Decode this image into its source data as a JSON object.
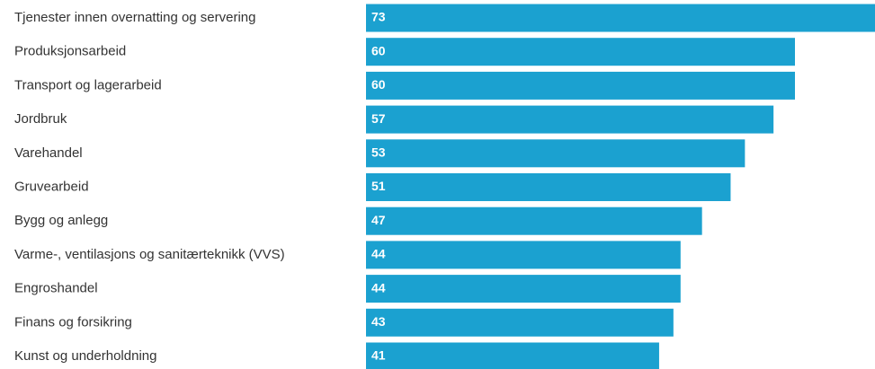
{
  "chart_data": {
    "type": "bar",
    "orientation": "horizontal",
    "categories": [
      "Tjenester innen overnatting og servering",
      "Produksjonsarbeid",
      "Transport og lagerarbeid",
      "Jordbruk",
      "Varehandel",
      "Gruvearbeid",
      "Bygg og anlegg",
      "Varme-, ventilasjons og sanitærteknikk (VVS)",
      "Engroshandel",
      "Finans og forsikring",
      "Kunst og underholdning"
    ],
    "values": [
      73,
      60,
      60,
      57,
      53,
      51,
      47,
      44,
      44,
      43,
      41
    ],
    "color": "#1ba1d0"
  }
}
